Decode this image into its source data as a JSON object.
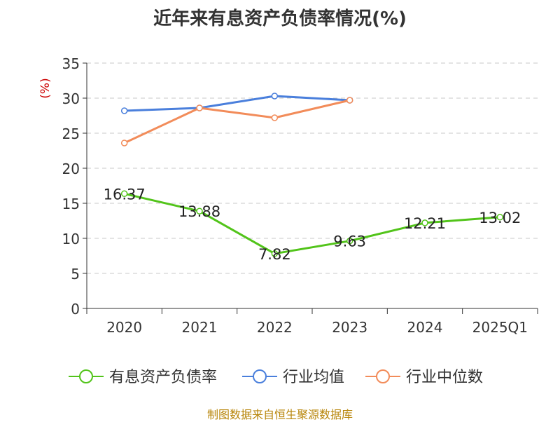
{
  "chart_data": {
    "type": "line",
    "title": "近年来有息资产负债率情况(%)",
    "ylabel": "(%)",
    "xlabel": "",
    "categories": [
      "2020",
      "2021",
      "2022",
      "2023",
      "2024",
      "2025Q1"
    ],
    "ylim": [
      0,
      35
    ],
    "yticks": [
      0,
      5,
      10,
      15,
      20,
      25,
      30,
      35
    ],
    "grid": true,
    "legend_position": "bottom",
    "series": [
      {
        "name": "有息资产负债率",
        "color": "#52c41a",
        "values": [
          16.37,
          13.88,
          7.82,
          9.63,
          12.21,
          13.02
        ],
        "labels": [
          "16.37",
          "13.88",
          "7.82",
          "9.63",
          "12.21",
          "13.02"
        ]
      },
      {
        "name": "行业均值",
        "color": "#4a7fdc",
        "values": [
          28.2,
          28.6,
          30.3,
          29.7,
          null,
          null
        ]
      },
      {
        "name": "行业中位数",
        "color": "#f28c5a",
        "values": [
          23.6,
          28.6,
          27.2,
          29.7,
          null,
          null
        ]
      }
    ]
  },
  "footer": {
    "source": "制图数据来自恒生聚源数据库"
  }
}
